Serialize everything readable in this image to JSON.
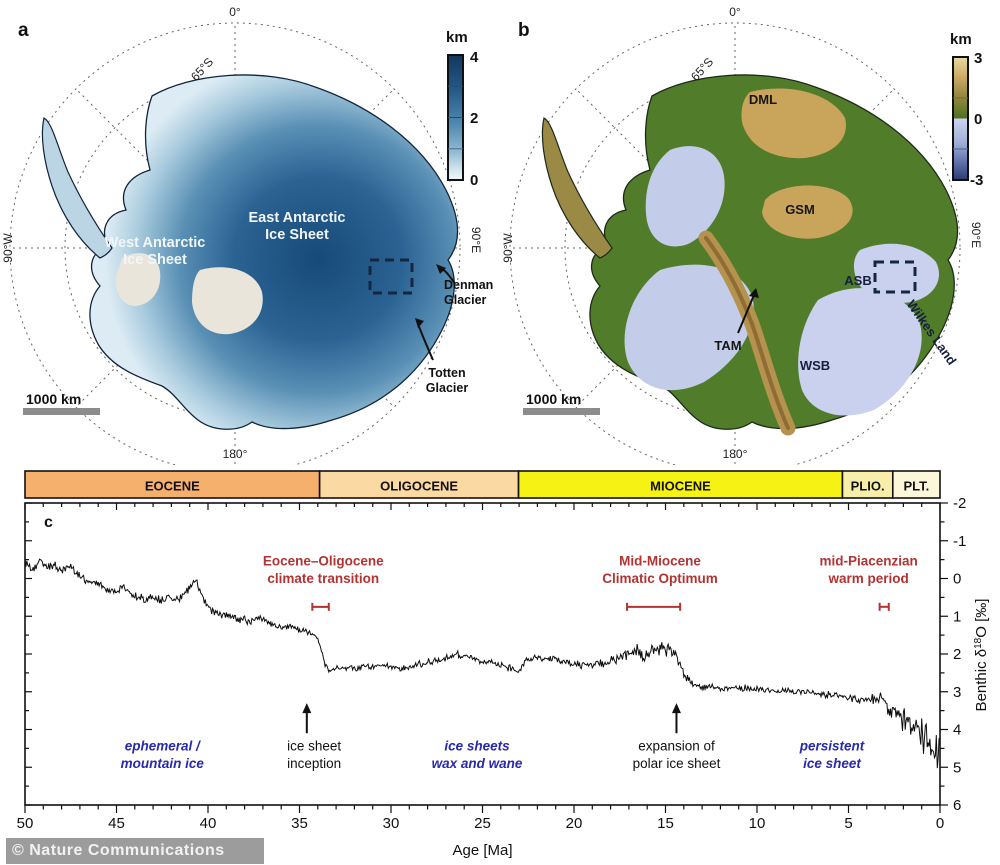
{
  "watermark": "© Nature Communications",
  "panel_a": {
    "label": "a",
    "colorbar": {
      "title": "km",
      "tick_top": "4",
      "tick_mid": "2",
      "tick_bottom": "0"
    },
    "graticule": {
      "top": "0°",
      "bottom": "180°",
      "left": "90°W",
      "right": "90°E",
      "lat": "65°S"
    },
    "region_labels": {
      "east_1": "East Antarctic",
      "east_2": "Ice Sheet",
      "west_1": "West Antarctic",
      "west_2": "Ice Sheet"
    },
    "glaciers": {
      "denman_1": "Denman",
      "denman_2": "Glacier",
      "totten_1": "Totten",
      "totten_2": "Glacier"
    },
    "scale_label": "1000 km"
  },
  "panel_b": {
    "label": "b",
    "colorbar": {
      "title": "km",
      "tick_top": "3",
      "tick_mid": "0",
      "tick_bottom": "-3"
    },
    "graticule": {
      "top": "0°",
      "bottom": "180°",
      "left": "90°W",
      "right": "90°E",
      "lat": "65°S"
    },
    "region_labels": {
      "dml": "DML",
      "gsm": "GSM",
      "asb": "ASB",
      "wsb": "WSB",
      "tam": "TAM",
      "wilkes": "Wilkes Land"
    },
    "scale_label": "1000 km"
  },
  "panel_c": {
    "label": "c",
    "ylabel_parts": {
      "prefix": "Benthic δ",
      "sup": "18",
      "suffix": "O [‰]"
    }
  },
  "chart_data": {
    "type": "line",
    "xlabel": "Age [Ma]",
    "ylabel": "Benthic δ18O [‰]",
    "x_range": [
      50,
      0
    ],
    "y_range": [
      -2,
      6
    ],
    "y_axis_reversed_d18O_down": true,
    "x_tick_major": 5,
    "x_tick_minor": 1,
    "y_tick_major": 1,
    "y_tick_minor": 0.5,
    "colors": {
      "red": "#b23331",
      "blue": "#2929ad",
      "black": "#111111",
      "curve": "#0d0d0d"
    },
    "epochs": [
      {
        "label": "EOCENE",
        "from": 50,
        "to": 33.9,
        "color": "#f6b06e"
      },
      {
        "label": "OLIGOCENE",
        "from": 33.9,
        "to": 23.03,
        "color": "#fbd9a2"
      },
      {
        "label": "MIOCENE",
        "from": 23.03,
        "to": 5.33,
        "color": "#f6f213"
      },
      {
        "label": "PLIO.",
        "from": 5.33,
        "to": 2.58,
        "color": "#f7efa9"
      },
      {
        "label": "PLT.",
        "from": 2.58,
        "to": 0,
        "color": "#fbf7da"
      }
    ],
    "annotation_rows": {
      "red1": -0.35,
      "red2": 0.12,
      "red_marker": 0.75,
      "low1": 4.55,
      "low2": 5.02,
      "arrow_from": 4.1,
      "arrow_to": 3.3
    },
    "events_red": [
      {
        "lines": [
          "Eocene–Oligocene",
          "climate transition"
        ],
        "text_age": 33.7,
        "marker": [
          34.3,
          33.4
        ]
      },
      {
        "lines": [
          "Mid-Miocene",
          "Climatic Optimum"
        ],
        "text_age": 15.3,
        "marker": [
          17.1,
          14.2
        ]
      },
      {
        "lines": [
          "mid-Piacenzian",
          "warm period"
        ],
        "text_age": 3.9,
        "marker": [
          3.3,
          2.8
        ]
      }
    ],
    "phases_blue": [
      {
        "lines": [
          "ephemeral /",
          "mountain ice"
        ],
        "age": 42.5
      },
      {
        "lines": [
          "ice sheets",
          "wax and wane"
        ],
        "age": 25.3
      },
      {
        "lines": [
          "persistent",
          "ice sheet"
        ],
        "age": 5.9
      }
    ],
    "transitions_black": [
      {
        "lines": [
          "ice sheet",
          "inception"
        ],
        "age": 34.2,
        "arrow_age": 34.6
      },
      {
        "lines": [
          "expansion of",
          "polar ice sheet"
        ],
        "age": 14.4,
        "arrow_age": 14.4
      }
    ],
    "series": [
      {
        "name": "benthic d18O stack",
        "anchors": [
          [
            50,
            -0.45
          ],
          [
            49.6,
            -0.2
          ],
          [
            49.2,
            -0.45
          ],
          [
            48.8,
            -0.3
          ],
          [
            48.4,
            -0.35
          ],
          [
            48,
            -0.2
          ],
          [
            47.6,
            -0.3
          ],
          [
            47.2,
            -0.15
          ],
          [
            46.8,
            0.0
          ],
          [
            46.4,
            0.1
          ],
          [
            46,
            0.15
          ],
          [
            45.5,
            0.3
          ],
          [
            45,
            0.35
          ],
          [
            44.6,
            0.2
          ],
          [
            44.2,
            0.4
          ],
          [
            43.8,
            0.5
          ],
          [
            43.4,
            0.55
          ],
          [
            43,
            0.45
          ],
          [
            42.6,
            0.6
          ],
          [
            42.2,
            0.5
          ],
          [
            41.8,
            0.6
          ],
          [
            41.4,
            0.45
          ],
          [
            41,
            0.25
          ],
          [
            40.7,
            0.05
          ],
          [
            40.4,
            0.35
          ],
          [
            40.1,
            0.7
          ],
          [
            39.8,
            0.85
          ],
          [
            39.4,
            0.9
          ],
          [
            39,
            1.0
          ],
          [
            38.5,
            1.05
          ],
          [
            38,
            1.1
          ],
          [
            37.6,
            1.15
          ],
          [
            37.2,
            1.0
          ],
          [
            36.8,
            1.15
          ],
          [
            36.4,
            1.25
          ],
          [
            36,
            1.3
          ],
          [
            35.5,
            1.25
          ],
          [
            35,
            1.35
          ],
          [
            34.6,
            1.4
          ],
          [
            34.2,
            1.5
          ],
          [
            33.9,
            1.7
          ],
          [
            33.6,
            2.3
          ],
          [
            33.3,
            2.45
          ],
          [
            33,
            2.4
          ],
          [
            32.5,
            2.35
          ],
          [
            32,
            2.4
          ],
          [
            31.5,
            2.3
          ],
          [
            31,
            2.35
          ],
          [
            30.5,
            2.28
          ],
          [
            30,
            2.33
          ],
          [
            29.5,
            2.4
          ],
          [
            29,
            2.35
          ],
          [
            28.5,
            2.28
          ],
          [
            28,
            2.22
          ],
          [
            27.5,
            2.18
          ],
          [
            27,
            2.12
          ],
          [
            26.5,
            2.0
          ],
          [
            26,
            2.05
          ],
          [
            25.5,
            2.12
          ],
          [
            25,
            2.2
          ],
          [
            24.5,
            2.25
          ],
          [
            24,
            2.3
          ],
          [
            23.5,
            2.35
          ],
          [
            23.1,
            2.5
          ],
          [
            22.8,
            2.25
          ],
          [
            22.4,
            2.12
          ],
          [
            22,
            2.1
          ],
          [
            21.5,
            2.12
          ],
          [
            21,
            2.15
          ],
          [
            20.5,
            2.2
          ],
          [
            20,
            2.25
          ],
          [
            19.5,
            2.28
          ],
          [
            19,
            2.3
          ],
          [
            18.5,
            2.25
          ],
          [
            18,
            2.18
          ],
          [
            17.5,
            2.1
          ],
          [
            17,
            2.0
          ],
          [
            16.5,
            1.95
          ],
          [
            16,
            2.0
          ],
          [
            15.5,
            1.9
          ],
          [
            15,
            1.95
          ],
          [
            14.7,
            1.88
          ],
          [
            14.4,
            2.1
          ],
          [
            14.1,
            2.45
          ],
          [
            13.8,
            2.65
          ],
          [
            13.5,
            2.78
          ],
          [
            13,
            2.88
          ],
          [
            12.5,
            2.84
          ],
          [
            12,
            2.9
          ],
          [
            11.5,
            2.88
          ],
          [
            11,
            2.93
          ],
          [
            10.5,
            2.9
          ],
          [
            10,
            2.94
          ],
          [
            9.5,
            2.96
          ],
          [
            9,
            2.98
          ],
          [
            8.5,
            2.96
          ],
          [
            8,
            3.0
          ],
          [
            7.5,
            3.02
          ],
          [
            7,
            3.04
          ],
          [
            6.5,
            3.06
          ],
          [
            6,
            3.08
          ],
          [
            5.5,
            3.1
          ],
          [
            5,
            3.14
          ],
          [
            4.5,
            3.18
          ],
          [
            4,
            3.24
          ],
          [
            3.6,
            3.2
          ],
          [
            3.2,
            3.12
          ],
          [
            3,
            3.3
          ],
          [
            2.8,
            3.45
          ],
          [
            2.5,
            3.55
          ],
          [
            2.2,
            3.65
          ],
          [
            2,
            3.75
          ],
          [
            1.7,
            3.85
          ],
          [
            1.4,
            3.95
          ],
          [
            1.1,
            4.1
          ],
          [
            0.8,
            4.25
          ],
          [
            0.5,
            4.4
          ],
          [
            0.2,
            4.55
          ],
          [
            0,
            4.65
          ]
        ],
        "noise_envelope": [
          [
            50,
            0.13
          ],
          [
            40,
            0.13
          ],
          [
            34.5,
            0.1
          ],
          [
            33,
            0.09
          ],
          [
            27,
            0.11
          ],
          [
            23,
            0.12
          ],
          [
            18,
            0.14
          ],
          [
            17,
            0.2
          ],
          [
            16,
            0.3
          ],
          [
            14.8,
            0.28
          ],
          [
            14,
            0.15
          ],
          [
            12,
            0.1
          ],
          [
            8,
            0.1
          ],
          [
            6,
            0.12
          ],
          [
            4,
            0.15
          ],
          [
            3,
            0.2
          ],
          [
            2.5,
            0.3
          ],
          [
            2,
            0.38
          ],
          [
            1.5,
            0.45
          ],
          [
            1,
            0.55
          ],
          [
            0.5,
            0.62
          ],
          [
            0,
            0.7
          ]
        ]
      }
    ]
  }
}
